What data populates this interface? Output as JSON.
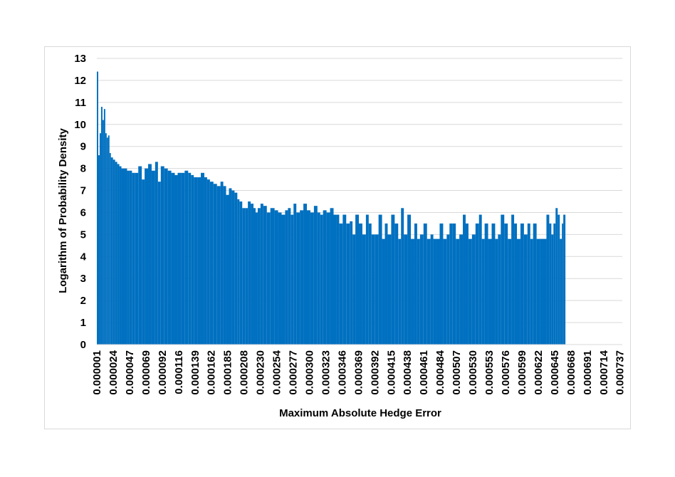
{
  "chart_data": {
    "type": "bar",
    "title": "",
    "xlabel": "Maximum Absolute Hedge Error",
    "ylabel": "Logarithm of Probability Density",
    "ylim": [
      0,
      13
    ],
    "yticks": [
      0,
      1,
      2,
      3,
      4,
      5,
      6,
      7,
      8,
      9,
      10,
      11,
      12,
      13
    ],
    "xlim": [
      1e-06,
      0.000749
    ],
    "xtick_labels": [
      "0.000001",
      "0.000024",
      "0.000047",
      "0.000069",
      "0.000092",
      "0.000116",
      "0.000139",
      "0.000162",
      "0.000185",
      "0.000208",
      "0.000230",
      "0.000254",
      "0.000277",
      "0.000300",
      "0.000323",
      "0.000346",
      "0.000369",
      "0.000392",
      "0.000415",
      "0.000438",
      "0.000461",
      "0.000484",
      "0.000507",
      "0.000530",
      "0.000553",
      "0.000576",
      "0.000599",
      "0.000622",
      "0.000645",
      "0.000668",
      "0.000691",
      "0.000714",
      "0.000737"
    ],
    "grid": true,
    "bar_color": "#0070C0",
    "grid_color": "#d9d9d9",
    "series": [
      {
        "name": "",
        "x": [
          1e-06,
          3e-06,
          5e-06,
          7e-06,
          9e-06,
          1.1e-05,
          1.3e-05,
          1.5e-05,
          1.7e-05,
          1.9e-05,
          2.1e-05,
          2.4e-05,
          2.7e-05,
          3e-05,
          3.3e-05,
          3.6e-05,
          4e-05,
          4.4e-05,
          4.7e-05,
          5.1e-05,
          5.5e-05,
          6e-05,
          6.5e-05,
          6.9e-05,
          7.4e-05,
          7.9e-05,
          8.4e-05,
          8.8e-05,
          9.2e-05,
          9.7e-05,
          0.000102,
          0.000107,
          0.000112,
          0.000116,
          0.000121,
          0.000126,
          0.000131,
          0.000135,
          0.000139,
          0.000144,
          0.000149,
          0.000154,
          0.000158,
          0.000162,
          0.000167,
          0.000172,
          0.000177,
          0.000181,
          0.000185,
          0.000189,
          0.000193,
          0.000197,
          0.000201,
          0.000204,
          0.000208,
          0.000212,
          0.000216,
          0.00022,
          0.000224,
          0.000227,
          0.00023,
          0.000234,
          0.000238,
          0.000243,
          0.000248,
          0.000254,
          0.000259,
          0.000264,
          0.000269,
          0.000273,
          0.000277,
          0.000281,
          0.000285,
          0.00029,
          0.000295,
          0.0003,
          0.000305,
          0.00031,
          0.000315,
          0.000319,
          0.000323,
          0.000328,
          0.000333,
          0.000338,
          0.000342,
          0.000346,
          0.000351,
          0.000356,
          0.000361,
          0.000365,
          0.000369,
          0.000374,
          0.000379,
          0.000384,
          0.000388,
          0.000392,
          0.000397,
          0.000402,
          0.000407,
          0.000411,
          0.000415,
          0.00042,
          0.000425,
          0.00043,
          0.000434,
          0.000438,
          0.000443,
          0.000448,
          0.000453,
          0.000457,
          0.000461,
          0.000466,
          0.000471,
          0.000476,
          0.00048,
          0.000484,
          0.000489,
          0.000494,
          0.000499,
          0.000503,
          0.000507,
          0.000512,
          0.000517,
          0.000522,
          0.000526,
          0.00053,
          0.000535,
          0.00054,
          0.000545,
          0.000549,
          0.000553,
          0.000558,
          0.000563,
          0.000568,
          0.000572,
          0.000576,
          0.000581,
          0.000586,
          0.000591,
          0.000595,
          0.000599,
          0.000604,
          0.000609,
          0.000614,
          0.000618,
          0.000622,
          0.000627,
          0.000632,
          0.000637,
          0.000641,
          0.000645,
          0.000648,
          0.000651,
          0.000654,
          0.000657,
          0.00066,
          0.000663,
          0.000665
        ],
        "values": [
          12.4,
          8.6,
          9.6,
          10.8,
          10.2,
          10.7,
          9.6,
          9.4,
          9.5,
          8.7,
          8.5,
          8.4,
          8.3,
          8.2,
          8.1,
          8.0,
          8.0,
          7.9,
          7.9,
          7.8,
          7.8,
          8.1,
          7.5,
          8.0,
          8.2,
          7.9,
          8.3,
          7.4,
          8.1,
          8.0,
          7.9,
          7.8,
          7.7,
          7.8,
          7.8,
          7.9,
          7.8,
          7.7,
          7.6,
          7.6,
          7.8,
          7.6,
          7.5,
          7.4,
          7.3,
          7.2,
          7.4,
          7.2,
          6.8,
          7.1,
          7.0,
          6.9,
          6.6,
          6.5,
          6.2,
          6.2,
          6.5,
          6.4,
          6.2,
          6.0,
          6.2,
          6.4,
          6.3,
          6.0,
          6.2,
          6.1,
          6.0,
          5.9,
          6.1,
          6.2,
          5.9,
          6.4,
          6.0,
          6.1,
          6.4,
          6.1,
          6.0,
          6.3,
          6.0,
          5.9,
          6.1,
          6.0,
          6.2,
          5.9,
          5.9,
          5.5,
          5.9,
          5.5,
          5.6,
          5.0,
          5.9,
          5.5,
          5.0,
          5.9,
          5.5,
          5.0,
          5.0,
          5.9,
          4.8,
          5.5,
          5.0,
          5.9,
          5.5,
          4.8,
          6.2,
          5.0,
          5.9,
          4.8,
          5.5,
          4.8,
          5.0,
          5.5,
          4.8,
          5.0,
          4.8,
          4.8,
          5.5,
          4.8,
          5.0,
          5.5,
          5.5,
          4.8,
          5.0,
          5.9,
          5.5,
          4.8,
          5.0,
          5.5,
          5.9,
          4.8,
          5.5,
          4.8,
          5.5,
          4.8,
          5.0,
          5.9,
          5.5,
          4.8,
          5.9,
          5.5,
          4.8,
          5.5,
          5.0,
          5.5,
          4.8,
          5.5,
          4.8,
          4.8,
          4.8,
          5.9,
          5.5,
          5.0,
          5.5,
          6.2,
          5.9,
          4.8,
          5.5,
          5.9
        ]
      }
    ]
  }
}
